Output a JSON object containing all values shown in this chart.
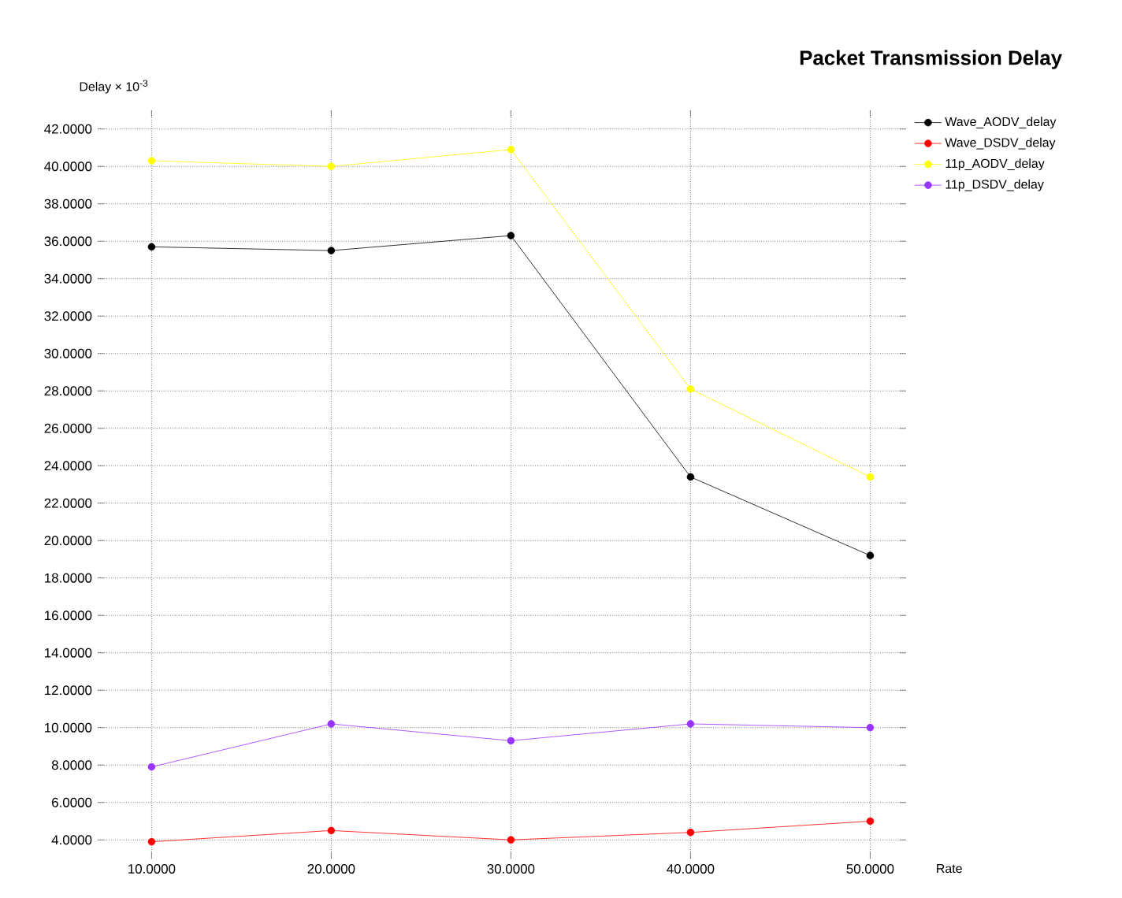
{
  "chart_data": {
    "type": "line",
    "title": "Packet Transmission Delay",
    "xlabel": "Rate",
    "ylabel": "Delay × 10$^{-3}$",
    "x": [
      10,
      20,
      30,
      40,
      50
    ],
    "series": [
      {
        "name": "Wave_AODV_delay",
        "color": "#000000",
        "values": [
          35.7,
          35.5,
          36.3,
          23.4,
          19.2
        ]
      },
      {
        "name": "Wave_DSDV_delay",
        "color": "#ff0000",
        "values": [
          3.9,
          4.5,
          4.0,
          4.4,
          5.0
        ]
      },
      {
        "name": "11p_AODV_delay",
        "color": "#ffff00",
        "values": [
          40.3,
          40.0,
          40.9,
          28.1,
          23.4
        ]
      },
      {
        "name": "11p_DSDV_delay",
        "color": "#9933ff",
        "values": [
          7.9,
          10.2,
          9.3,
          10.2,
          10.0
        ]
      }
    ],
    "xlim": [
      7,
      52
    ],
    "ylim": [
      3,
      43
    ],
    "xticks": [
      {
        "value": 10,
        "label": "10.0000"
      },
      {
        "value": 20,
        "label": "20.0000"
      },
      {
        "value": 30,
        "label": "30.0000"
      },
      {
        "value": 40,
        "label": "40.0000"
      },
      {
        "value": 50,
        "label": "50.0000"
      }
    ],
    "yticks": [
      {
        "value": 4,
        "label": "4.0000"
      },
      {
        "value": 6,
        "label": "6.0000"
      },
      {
        "value": 8,
        "label": "8.0000"
      },
      {
        "value": 10,
        "label": "10.0000"
      },
      {
        "value": 12,
        "label": "12.0000"
      },
      {
        "value": 14,
        "label": "14.0000"
      },
      {
        "value": 16,
        "label": "16.0000"
      },
      {
        "value": 18,
        "label": "18.0000"
      },
      {
        "value": 20,
        "label": "20.0000"
      },
      {
        "value": 22,
        "label": "22.0000"
      },
      {
        "value": 24,
        "label": "24.0000"
      },
      {
        "value": 26,
        "label": "26.0000"
      },
      {
        "value": 28,
        "label": "28.0000"
      },
      {
        "value": 30,
        "label": "30.0000"
      },
      {
        "value": 32,
        "label": "32.0000"
      },
      {
        "value": 34,
        "label": "34.0000"
      },
      {
        "value": 36,
        "label": "36.0000"
      },
      {
        "value": 38,
        "label": "38.0000"
      },
      {
        "value": 40,
        "label": "40.0000"
      },
      {
        "value": 42,
        "label": "42.0000"
      }
    ],
    "grid": true,
    "legend": "right",
    "marker": "circle",
    "line_style": "solid"
  }
}
